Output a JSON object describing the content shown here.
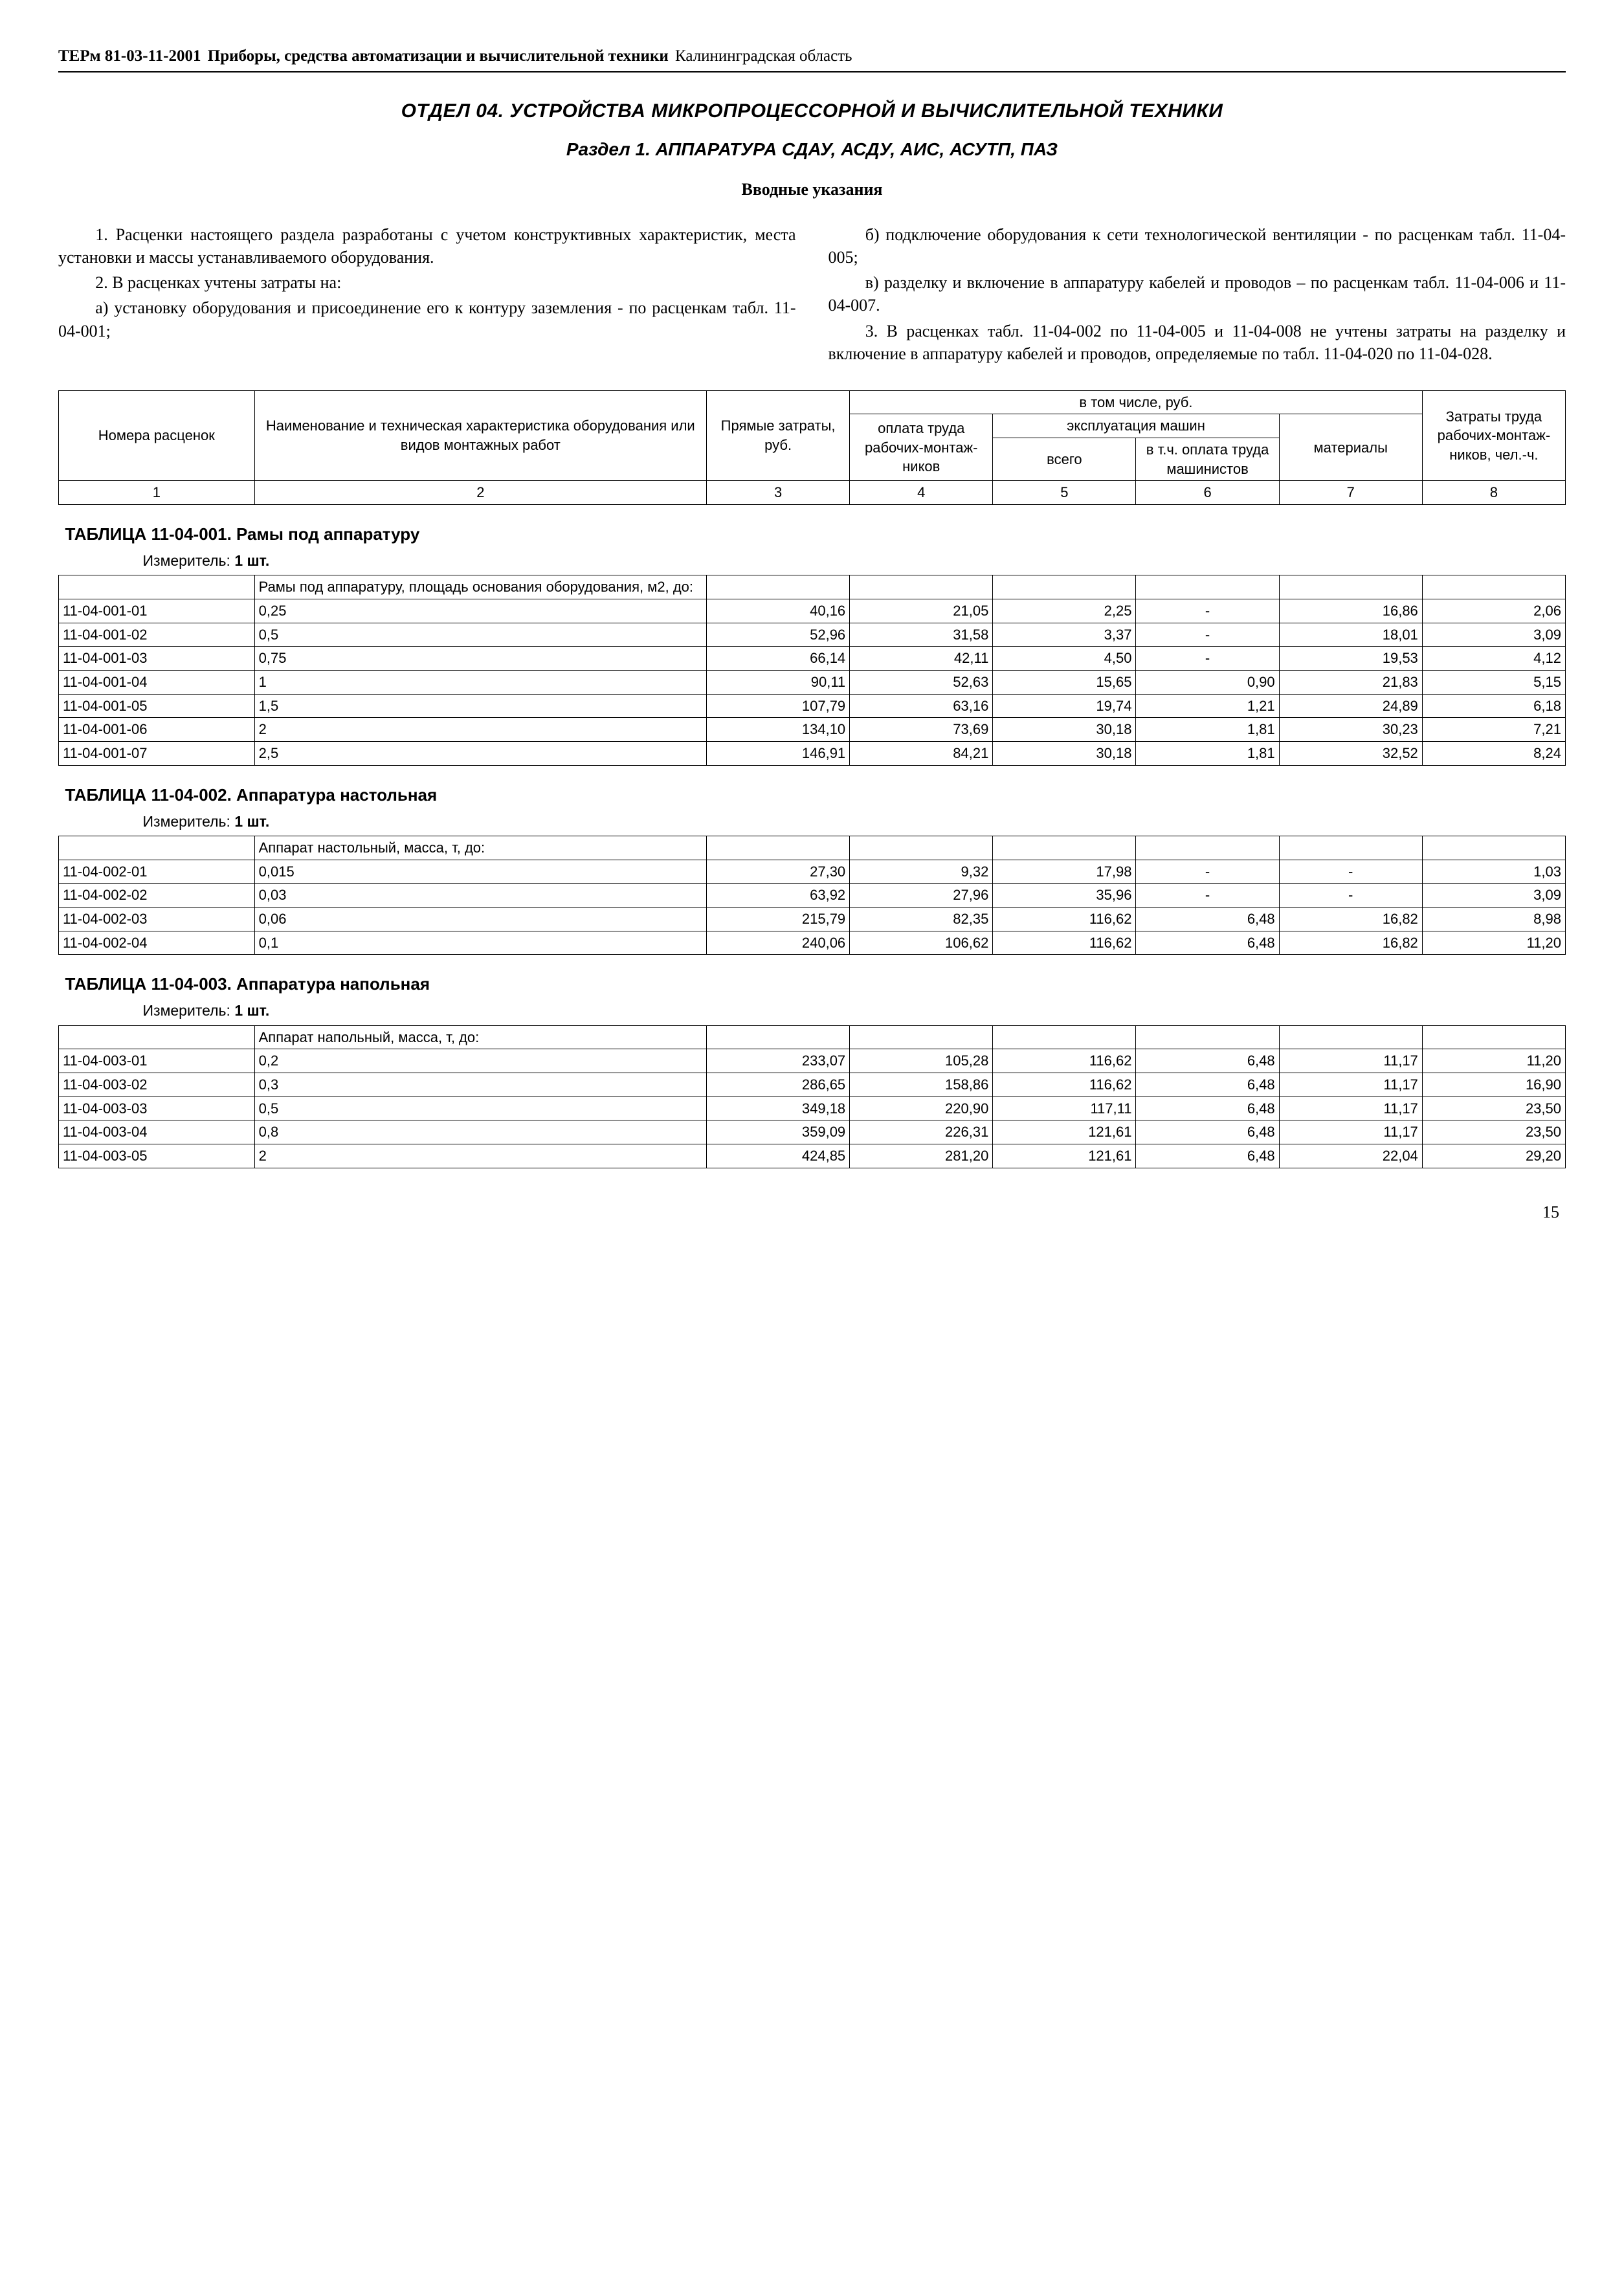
{
  "header": {
    "code": "ТЕРм 81-03-11-2001",
    "title_bold": "Приборы, средства автоматизации и вычислительной техники",
    "region": "Калининградская область"
  },
  "h1": "ОТДЕЛ 04. УСТРОЙСТВА МИКРОПРОЦЕССОРНОЙ И ВЫЧИСЛИТЕЛЬНОЙ ТЕХНИКИ",
  "h2": "Раздел 1. АППАРАТУРА СДАУ, АСДУ, АИС, АСУТП, ПАЗ",
  "intro_heading": "Вводные указания",
  "left_col": [
    "1. Расценки настоящего раздела разработаны с учетом конструктивных характеристик, места установки и массы устанавливаемого оборудования.",
    "2. В расценках учтены затраты на:",
    "а) установку оборудования и присоединение его к контуру заземления - по расценкам табл. 11-04-001;"
  ],
  "right_col": [
    "б) подключение оборудования к сети технологической вентиляции - по расценкам табл. 11-04-005;",
    "в) разделку и включение в аппаратуру кабелей и проводов – по расценкам табл. 11-04-006 и 11-04-007.",
    "3. В расценках табл. 11-04-002 по 11-04-005 и 11-04-008 не учтены затраты на разделку и включение в аппаратуру кабелей и проводов, определяемые по табл. 11-04-020 по 11-04-028."
  ],
  "table_header": {
    "col1": "Номера расценок",
    "col2": "Наименование и техническая характеристика оборудования или видов монтажных работ",
    "col3": "Прямые затраты, руб.",
    "group_top": "в том числе, руб.",
    "col4": "оплата труда рабочих-монтаж-ников",
    "group_machines": "эксплуатация машин",
    "col5": "всего",
    "col6": "в т.ч. оплата труда машинистов",
    "col7": "материалы",
    "col8": "Затраты труда рабочих-монтаж-ников, чел.-ч.",
    "nums": [
      "1",
      "2",
      "3",
      "4",
      "5",
      "6",
      "7",
      "8"
    ]
  },
  "sections": [
    {
      "title": "ТАБЛИЦА  11-04-001.  Рамы под аппаратуру",
      "measure_label": "Измеритель:",
      "measure_value": "1 шт.",
      "desc": "Рамы под аппаратуру, площадь основания оборудования, м2, до:",
      "rows": [
        [
          "11-04-001-01",
          "0,25",
          "40,16",
          "21,05",
          "2,25",
          "-",
          "16,86",
          "2,06"
        ],
        [
          "11-04-001-02",
          "0,5",
          "52,96",
          "31,58",
          "3,37",
          "-",
          "18,01",
          "3,09"
        ],
        [
          "11-04-001-03",
          "0,75",
          "66,14",
          "42,11",
          "4,50",
          "-",
          "19,53",
          "4,12"
        ],
        [
          "11-04-001-04",
          "1",
          "90,11",
          "52,63",
          "15,65",
          "0,90",
          "21,83",
          "5,15"
        ],
        [
          "11-04-001-05",
          "1,5",
          "107,79",
          "63,16",
          "19,74",
          "1,21",
          "24,89",
          "6,18"
        ],
        [
          "11-04-001-06",
          "2",
          "134,10",
          "73,69",
          "30,18",
          "1,81",
          "30,23",
          "7,21"
        ],
        [
          "11-04-001-07",
          "2,5",
          "146,91",
          "84,21",
          "30,18",
          "1,81",
          "32,52",
          "8,24"
        ]
      ]
    },
    {
      "title": "ТАБЛИЦА  11-04-002.  Аппаратура настольная",
      "measure_label": "Измеритель:",
      "measure_value": "1 шт.",
      "desc": "Аппарат настольный, масса, т, до:",
      "rows": [
        [
          "11-04-002-01",
          "0,015",
          "27,30",
          "9,32",
          "17,98",
          "-",
          "-",
          "1,03"
        ],
        [
          "11-04-002-02",
          "0,03",
          "63,92",
          "27,96",
          "35,96",
          "-",
          "-",
          "3,09"
        ],
        [
          "11-04-002-03",
          "0,06",
          "215,79",
          "82,35",
          "116,62",
          "6,48",
          "16,82",
          "8,98"
        ],
        [
          "11-04-002-04",
          "0,1",
          "240,06",
          "106,62",
          "116,62",
          "6,48",
          "16,82",
          "11,20"
        ]
      ]
    },
    {
      "title": "ТАБЛИЦА  11-04-003.  Аппаратура напольная",
      "measure_label": "Измеритель:",
      "measure_value": "1 шт.",
      "desc": "Аппарат напольный, масса, т, до:",
      "rows": [
        [
          "11-04-003-01",
          "0,2",
          "233,07",
          "105,28",
          "116,62",
          "6,48",
          "11,17",
          "11,20"
        ],
        [
          "11-04-003-02",
          "0,3",
          "286,65",
          "158,86",
          "116,62",
          "6,48",
          "11,17",
          "16,90"
        ],
        [
          "11-04-003-03",
          "0,5",
          "349,18",
          "220,90",
          "117,11",
          "6,48",
          "11,17",
          "23,50"
        ],
        [
          "11-04-003-04",
          "0,8",
          "359,09",
          "226,31",
          "121,61",
          "6,48",
          "11,17",
          "23,50"
        ],
        [
          "11-04-003-05",
          "2",
          "424,85",
          "281,20",
          "121,61",
          "6,48",
          "22,04",
          "29,20"
        ]
      ]
    }
  ],
  "page_number": "15",
  "col_widths": [
    "13%",
    "30%",
    "9.5%",
    "9.5%",
    "9.5%",
    "9.5%",
    "9.5%",
    "9.5%"
  ]
}
